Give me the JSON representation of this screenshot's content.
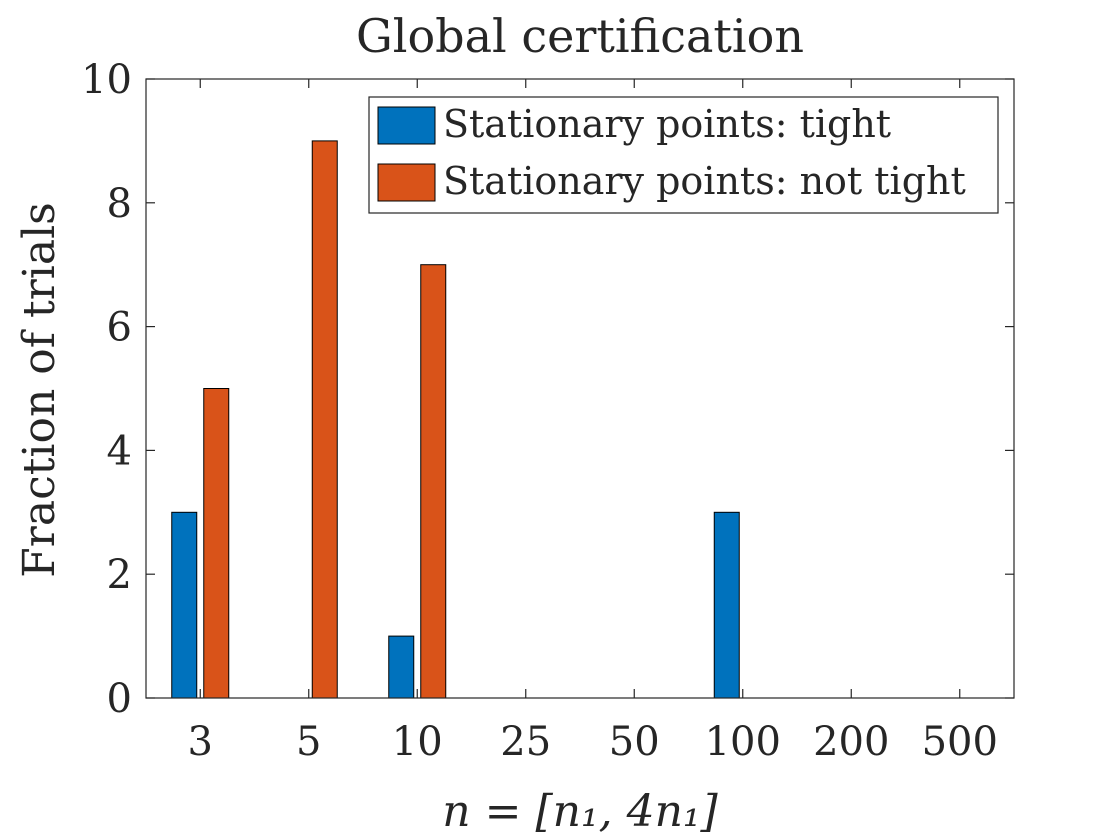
{
  "chart_data": {
    "type": "bar",
    "title": "Global certification",
    "xlabel": "n = [n₁, 4n₁]",
    "ylabel": "Fraction of trials",
    "categories": [
      "3",
      "5",
      "10",
      "25",
      "50",
      "100",
      "200",
      "500"
    ],
    "ylim": [
      0,
      10
    ],
    "yticks": [
      "0",
      "2",
      "4",
      "6",
      "8",
      "10"
    ],
    "legend_position": "top-right",
    "grid": false,
    "series": [
      {
        "name": "Stationary points: tight",
        "color": "#0072BD",
        "values": [
          3,
          0,
          1,
          0,
          0,
          3,
          0,
          0
        ]
      },
      {
        "name": "Stationary points: not tight",
        "color": "#D95319",
        "values": [
          5,
          9,
          7,
          0,
          0,
          0,
          0,
          0
        ]
      }
    ]
  }
}
